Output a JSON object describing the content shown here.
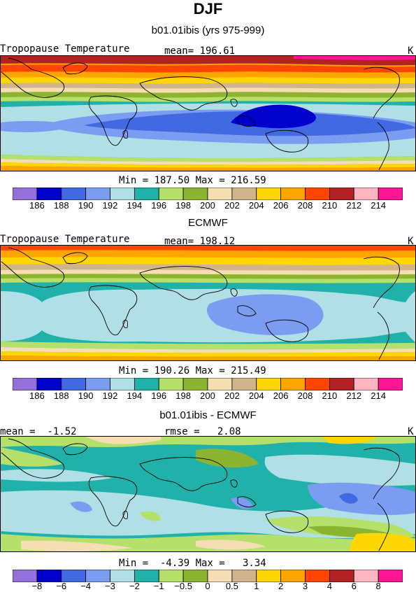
{
  "title": "DJF",
  "panels": [
    {
      "subtitle": "b01.01ibis (yrs 975-999)",
      "left_label": "Tropopause Temperature",
      "center_label": "mean= 196.61",
      "unit": "K",
      "stats": "Min = 187.50 Max = 216.59"
    },
    {
      "subtitle": "ECMWF",
      "left_label": "Tropopause Temperature",
      "center_label": "mean= 198.12",
      "unit": "K",
      "stats": "Min = 190.26 Max = 215.49"
    },
    {
      "subtitle": "b01.01ibis - ECMWF",
      "left_label": "mean =  -1.52",
      "center_label": "rmse =   2.08",
      "unit": "K",
      "stats": "Min =  -4.39 Max =   3.34"
    }
  ],
  "colorbars": {
    "absolute": {
      "colors": [
        "#9370db",
        "#0000cd",
        "#4169e1",
        "#7b9cf0",
        "#b0e0e6",
        "#20b2aa",
        "#b5e06a",
        "#8db430",
        "#f5deb3",
        "#d2b48c",
        "#ffd700",
        "#ffa500",
        "#ff4500",
        "#b22222",
        "#ffb6c1",
        "#ff1493"
      ],
      "ticks": [
        "186",
        "188",
        "190",
        "192",
        "194",
        "196",
        "198",
        "200",
        "202",
        "204",
        "206",
        "208",
        "210",
        "212",
        "214"
      ]
    },
    "difference": {
      "colors": [
        "#9370db",
        "#0000cd",
        "#4169e1",
        "#7b9cf0",
        "#b0e0e6",
        "#20b2aa",
        "#b5e06a",
        "#8db430",
        "#f5deb3",
        "#d2b48c",
        "#ffd700",
        "#ffa500",
        "#ff4500",
        "#b22222",
        "#ffb6c1",
        "#ff1493"
      ],
      "ticks": [
        "−8",
        "−6",
        "−4",
        "−3",
        "−2",
        "−1",
        "−0.5",
        "0",
        "0.5",
        "1",
        "2",
        "3",
        "4",
        "6",
        "8"
      ]
    }
  }
}
